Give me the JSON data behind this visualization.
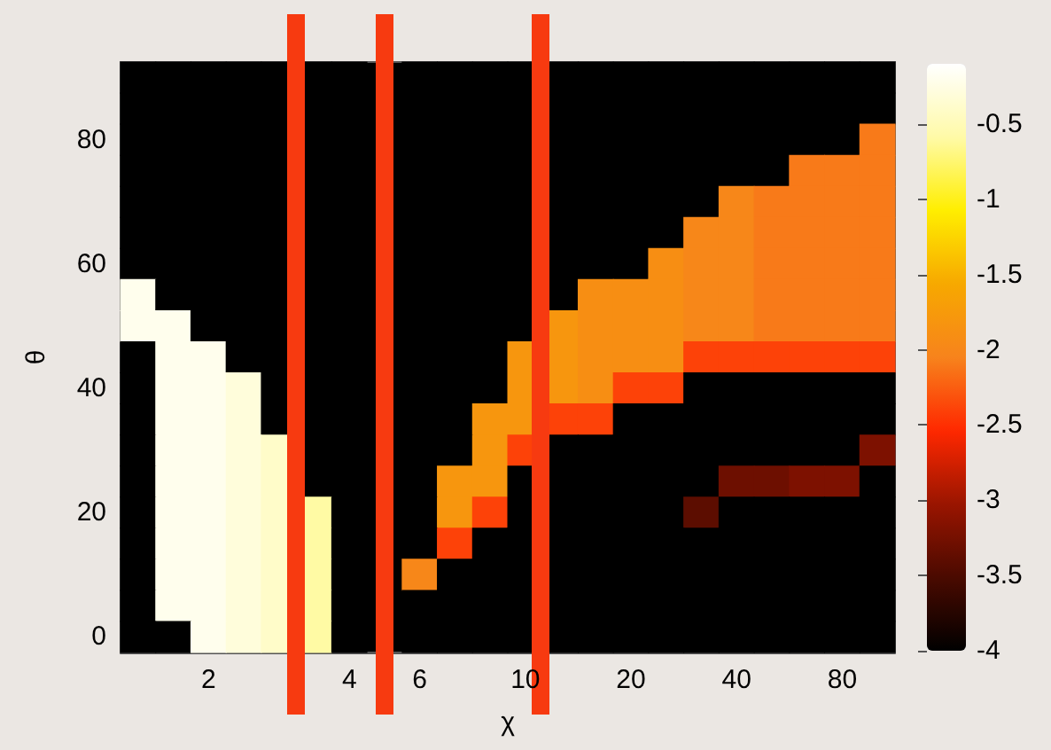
{
  "chart_data": {
    "type": "heatmap",
    "xlabel": "χ",
    "ylabel": "θ",
    "categories": [
      null,
      null,
      "2",
      null,
      null,
      null,
      "4",
      null,
      "6",
      null,
      null,
      "10",
      null,
      null,
      "20",
      null,
      null,
      "40",
      null,
      null,
      "80",
      null
    ],
    "y_categories": [
      null,
      null,
      "80",
      null,
      null,
      null,
      "60",
      null,
      null,
      null,
      "40",
      null,
      null,
      null,
      "20",
      null,
      null,
      null,
      "0"
    ],
    "cells": [
      [
        -4,
        -4,
        -4,
        -4,
        -4,
        -4,
        -4,
        null,
        -4,
        -4,
        -4,
        -4,
        -4,
        -4,
        -4,
        -4,
        -4,
        -4,
        -4,
        -4,
        -4,
        -4
      ],
      [
        -4,
        -4,
        -4,
        -4,
        -4,
        -4,
        -4,
        null,
        -4,
        -4,
        -4,
        -4,
        -4,
        -4,
        -4,
        -4,
        -4,
        -4,
        -4,
        -4,
        -4,
        -4
      ],
      [
        -4,
        -4,
        -4,
        -4,
        -4,
        -4,
        -4,
        null,
        -4,
        -4,
        -4,
        -4,
        -4,
        -4,
        -4,
        -4,
        -4,
        -4,
        -4,
        -4,
        -4,
        -2.1
      ],
      [
        -4,
        -4,
        -4,
        -4,
        -4,
        -4,
        -4,
        null,
        -4,
        -4,
        -4,
        -4,
        -4,
        -4,
        -4,
        -4,
        -4,
        -4,
        -4,
        -2.1,
        -2.1,
        -2.1
      ],
      [
        -4,
        -4,
        -4,
        -4,
        -4,
        -4,
        -4,
        null,
        -4,
        -4,
        -4,
        -4,
        -4,
        -4,
        -4,
        -4,
        -4,
        -2.0,
        -2.1,
        -2.1,
        -2.1,
        -2.1
      ],
      [
        -4,
        -4,
        -4,
        -4,
        -4,
        -4,
        -4,
        null,
        -4,
        -4,
        -4,
        -4,
        -4,
        -4,
        -4,
        -4,
        -2.0,
        -2.0,
        -2.1,
        -2.1,
        -2.1,
        -2.1
      ],
      [
        -4,
        -4,
        -4,
        -4,
        -4,
        -4,
        -4,
        null,
        -4,
        -4,
        -4,
        -4,
        -4,
        -4,
        -4,
        -1.9,
        -2.0,
        -2.0,
        -2.1,
        -2.1,
        -2.1,
        -2.1
      ],
      [
        -0.2,
        -4,
        -4,
        -4,
        -4,
        -4,
        -4,
        null,
        -4,
        -4,
        -4,
        -4,
        -4,
        -1.9,
        -1.9,
        -1.9,
        -2.0,
        -2.0,
        -2.1,
        -2.1,
        -2.1,
        -2.1
      ],
      [
        -0.2,
        -0.2,
        -4,
        -4,
        -4,
        -4,
        -4,
        null,
        -4,
        -4,
        -4,
        -4,
        -1.8,
        -1.9,
        -1.9,
        -1.9,
        -2.0,
        -2.0,
        -2.1,
        -2.1,
        -2.1,
        -2.1
      ],
      [
        -4,
        -0.2,
        -0.2,
        -4,
        -4,
        -4,
        -4,
        null,
        -4,
        -4,
        -4,
        -1.8,
        -1.8,
        -1.9,
        -1.9,
        -1.9,
        -2.4,
        -2.4,
        -2.4,
        -2.4,
        -2.4,
        -2.4
      ],
      [
        -4,
        -0.2,
        -0.2,
        -0.3,
        -4,
        -4,
        -4,
        null,
        -4,
        -4,
        -4,
        -1.8,
        -1.8,
        -1.9,
        -2.4,
        -2.4,
        -4,
        -4,
        -4,
        -4,
        -4,
        -4
      ],
      [
        -4,
        -0.2,
        -0.2,
        -0.3,
        -4,
        -4,
        -4,
        null,
        -4,
        -4,
        -1.8,
        -1.8,
        -2.4,
        -2.4,
        -4,
        -4,
        -4,
        -4,
        -4,
        -4,
        -4,
        -4
      ],
      [
        -4,
        -0.2,
        -0.2,
        -0.3,
        -0.4,
        -4,
        -4,
        null,
        -4,
        -4,
        -1.8,
        -2.4,
        -4,
        -4,
        -4,
        -4,
        -4,
        -4,
        -4,
        -4,
        -4,
        -3.2
      ],
      [
        -4,
        -0.2,
        -0.2,
        -0.3,
        -0.4,
        -4,
        -4,
        null,
        -4,
        -1.8,
        -1.8,
        -4,
        -4,
        -4,
        -4,
        -4,
        -4,
        -3.3,
        -3.3,
        -3.2,
        -3.2,
        -4
      ],
      [
        -4,
        -0.2,
        -0.2,
        -0.3,
        -0.4,
        -0.6,
        -4,
        null,
        -4,
        -1.8,
        -2.4,
        -4,
        -4,
        -4,
        -4,
        -4,
        -3.4,
        -4,
        -4,
        -4,
        -4,
        -4
      ],
      [
        -4,
        -0.2,
        -0.2,
        -0.3,
        -0.4,
        -0.6,
        -4,
        null,
        -4,
        -2.4,
        -4,
        -4,
        -4,
        -4,
        -4,
        -4,
        -4,
        -4,
        -4,
        -4,
        -4,
        -4
      ],
      [
        -4,
        -0.2,
        -0.2,
        -0.3,
        -0.4,
        -0.6,
        -4,
        null,
        -2.0,
        -4,
        -4,
        -4,
        -4,
        -4,
        -4,
        -4,
        -4,
        -4,
        -4,
        -4,
        -4,
        -4
      ],
      [
        -4,
        -0.2,
        -0.2,
        -0.3,
        -0.4,
        -0.6,
        -4,
        null,
        -4,
        -4,
        -4,
        -4,
        -4,
        -4,
        -4,
        -4,
        -4,
        -4,
        -4,
        -4,
        -4,
        -4
      ],
      [
        -4,
        -4,
        -0.2,
        -0.3,
        -0.4,
        -0.6,
        -4,
        null,
        -4,
        -4,
        -4,
        -4,
        -4,
        -4,
        -4,
        -4,
        -4,
        -4,
        -4,
        -4,
        -4,
        -4
      ]
    ],
    "clim": [
      -4,
      -0.1
    ],
    "cticks": [
      -0.5,
      -1,
      -1.5,
      -2,
      -2.5,
      -3,
      -3.5,
      -4
    ]
  }
}
